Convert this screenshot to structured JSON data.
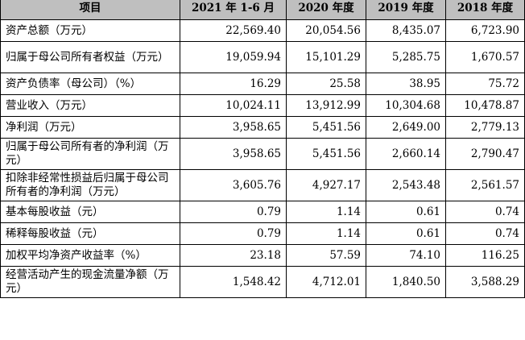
{
  "table": {
    "headers": [
      "项目",
      "2021 年 1-6 月",
      "2020 年度",
      "2019 年度",
      "2018 年度"
    ],
    "rows": [
      {
        "label": "资产总额（万元）",
        "values": [
          "22,569.40",
          "20,054.56",
          "8,435.07",
          "6,723.90"
        ],
        "tall": false
      },
      {
        "label": "归属于母公司所有者权益（万元）",
        "values": [
          "19,059.94",
          "15,101.29",
          "5,285.75",
          "1,670.57"
        ],
        "tall": true
      },
      {
        "label": "资产负债率（母公司）（%）",
        "values": [
          "16.29",
          "25.58",
          "38.95",
          "75.72"
        ],
        "tall": false
      },
      {
        "label": "营业收入（万元）",
        "values": [
          "10,024.11",
          "13,912.99",
          "10,304.68",
          "10,478.87"
        ],
        "tall": false
      },
      {
        "label": "净利润（万元）",
        "values": [
          "3,958.65",
          "5,451.56",
          "2,649.00",
          "2,779.13"
        ],
        "tall": false
      },
      {
        "label": "归属于母公司所有者的净利润（万元）",
        "values": [
          "3,958.65",
          "5,451.56",
          "2,660.14",
          "2,790.47"
        ],
        "tall": true
      },
      {
        "label": "扣除非经常性损益后归属于母公司所有者的净利润（万元）",
        "values": [
          "3,605.76",
          "4,927.17",
          "2,543.48",
          "2,561.57"
        ],
        "tall": true
      },
      {
        "label": "基本每股收益（元）",
        "values": [
          "0.79",
          "1.14",
          "0.61",
          "0.74"
        ],
        "tall": false
      },
      {
        "label": "稀释每股收益（元）",
        "values": [
          "0.79",
          "1.14",
          "0.61",
          "0.74"
        ],
        "tall": false
      },
      {
        "label": "加权平均净资产收益率（%）",
        "values": [
          "23.18",
          "57.59",
          "74.10",
          "116.25"
        ],
        "tall": false
      },
      {
        "label": "经营活动产生的现金流量净额（万元）",
        "values": [
          "1,548.42",
          "4,712.01",
          "1,840.50",
          "3,588.29"
        ],
        "tall": true
      }
    ]
  }
}
